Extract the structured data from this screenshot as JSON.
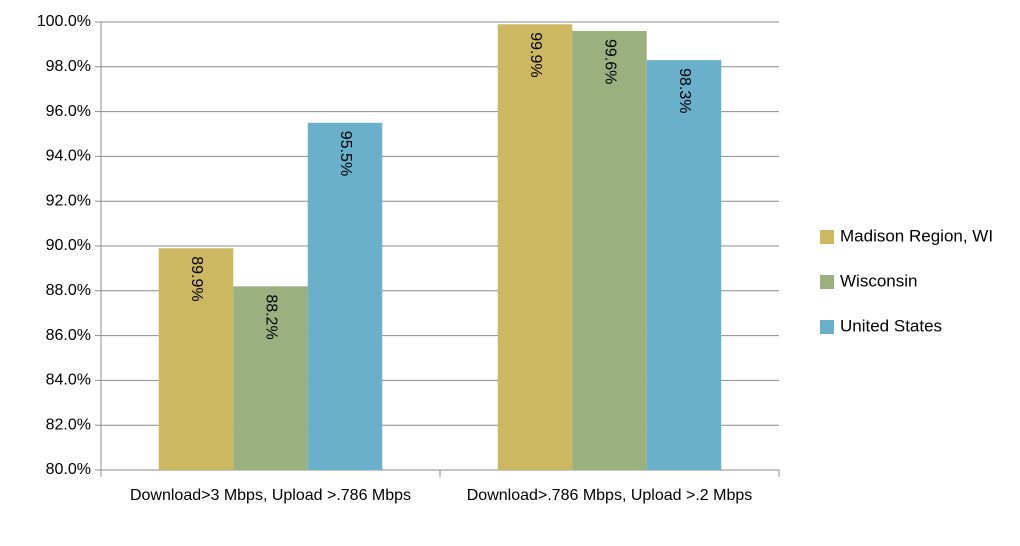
{
  "chart_data": {
    "type": "bar",
    "categories": [
      "Download>3 Mbps, Upload >.786 Mbps",
      "Download>.786 Mbps, Upload >.2 Mbps"
    ],
    "series": [
      {
        "name": "Madison Region, WI",
        "color": "#cdb862",
        "values": [
          89.9,
          99.9
        ],
        "value_labels": [
          "89.9%",
          "99.9%"
        ]
      },
      {
        "name": "Wisconsin",
        "color": "#9bb07f",
        "values": [
          88.2,
          99.6
        ],
        "value_labels": [
          "88.2%",
          "99.6%"
        ]
      },
      {
        "name": "United States",
        "color": "#6ab0cb",
        "values": [
          95.5,
          98.3
        ],
        "value_labels": [
          "95.5%",
          "98.3%"
        ]
      }
    ],
    "ylim": [
      80,
      100
    ],
    "yticks": [
      {
        "value": 80,
        "label": "80.0%"
      },
      {
        "value": 82,
        "label": "82.0%"
      },
      {
        "value": 84,
        "label": "84.0%"
      },
      {
        "value": 86,
        "label": "86.0%"
      },
      {
        "value": 88,
        "label": "88.0%"
      },
      {
        "value": 90,
        "label": "90.0%"
      },
      {
        "value": 92,
        "label": "92.0%"
      },
      {
        "value": 94,
        "label": "94.0%"
      },
      {
        "value": 96,
        "label": "96.0%"
      },
      {
        "value": 98,
        "label": "98.0%"
      },
      {
        "value": 100,
        "label": "100.0%"
      }
    ],
    "grid": true,
    "legend": "right"
  }
}
